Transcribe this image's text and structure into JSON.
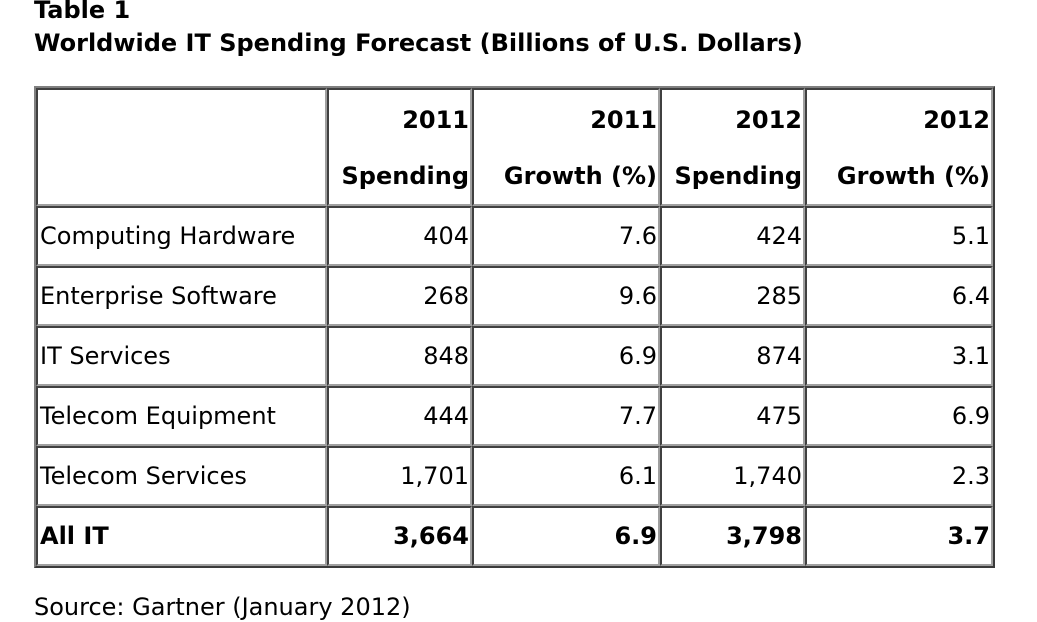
{
  "caption": {
    "label": "Table 1",
    "title": "Worldwide IT Spending Forecast (Billions of U.S. Dollars)"
  },
  "table": {
    "headers": [
      {
        "line1": "",
        "line2": ""
      },
      {
        "line1": "2011",
        "line2": "Spending"
      },
      {
        "line1": "2011",
        "line2": "Growth (%)"
      },
      {
        "line1": "2012",
        "line2": "Spending"
      },
      {
        "line1": "2012",
        "line2": "Growth (%)"
      }
    ],
    "rows": [
      [
        "Computing Hardware",
        "404",
        "7.6",
        "424",
        "5.1"
      ],
      [
        "Enterprise Software",
        "268",
        "9.6",
        "285",
        "6.4"
      ],
      [
        "IT Services",
        "848",
        "6.9",
        "874",
        "3.1"
      ],
      [
        "Telecom Equipment",
        "444",
        "7.7",
        "475",
        "6.9"
      ],
      [
        "Telecom Services",
        "1,701",
        "6.1",
        "1,740",
        "2.3"
      ]
    ],
    "total": [
      "All IT",
      "3,664",
      "6.9",
      "3,798",
      "3.7"
    ]
  },
  "source": "Source: Gartner (January 2012)"
}
